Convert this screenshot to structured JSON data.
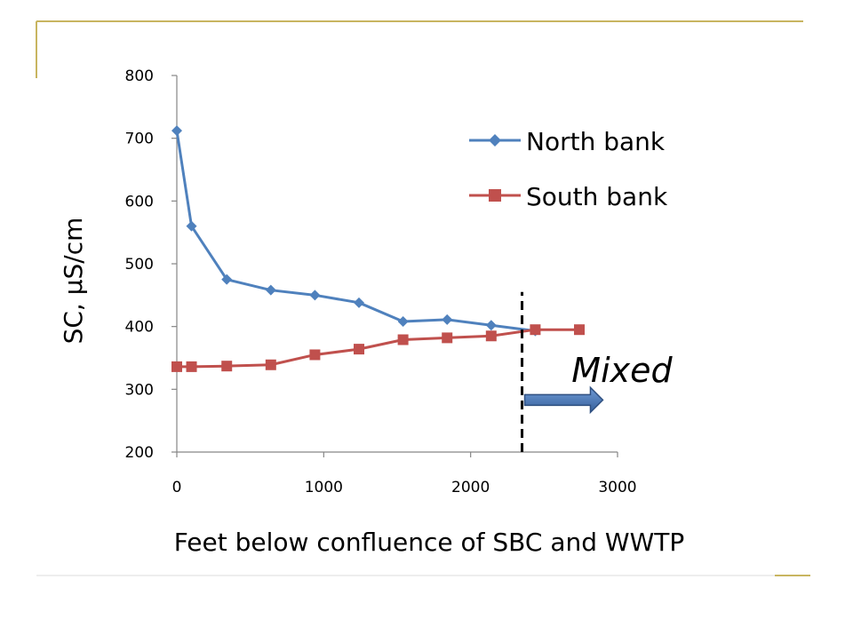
{
  "slide": {
    "accent_color": "#c8b560",
    "rule_color": "#dcdcdc"
  },
  "chart_data": {
    "type": "line",
    "title": "",
    "xlabel": "Feet below confluence of SBC and WWTP",
    "ylabel": "SC, µS/cm",
    "xlim": [
      0,
      3000
    ],
    "ylim": [
      200,
      800
    ],
    "x_ticks": [
      0,
      1000,
      2000,
      3000
    ],
    "y_ticks": [
      200,
      300,
      400,
      500,
      600,
      700,
      800
    ],
    "grid": false,
    "legend_position": "top-right",
    "series": [
      {
        "name": "North bank",
        "color": "#4f81bd",
        "marker": "diamond",
        "x": [
          0,
          100,
          340,
          640,
          940,
          1240,
          1540,
          1840,
          2140,
          2440
        ],
        "y": [
          712,
          560,
          475,
          458,
          450,
          438,
          408,
          411,
          402,
          393
        ]
      },
      {
        "name": "South bank",
        "color": "#c0504d",
        "marker": "square",
        "x": [
          0,
          100,
          340,
          640,
          940,
          1240,
          1540,
          1840,
          2140,
          2440,
          2740
        ],
        "y": [
          336,
          336,
          337,
          339,
          355,
          364,
          379,
          382,
          385,
          395,
          395
        ]
      }
    ],
    "annotations": [
      {
        "type": "vline",
        "x": 2350,
        "y_from": 200,
        "y_to": 455,
        "style": "dashed",
        "color": "#000000"
      },
      {
        "type": "arrow",
        "x_from": 2350,
        "x_to": 2900,
        "y": 283,
        "color": "#4f81bd"
      },
      {
        "type": "text",
        "text": "Mixed",
        "x": 3030,
        "y": 312
      }
    ]
  }
}
